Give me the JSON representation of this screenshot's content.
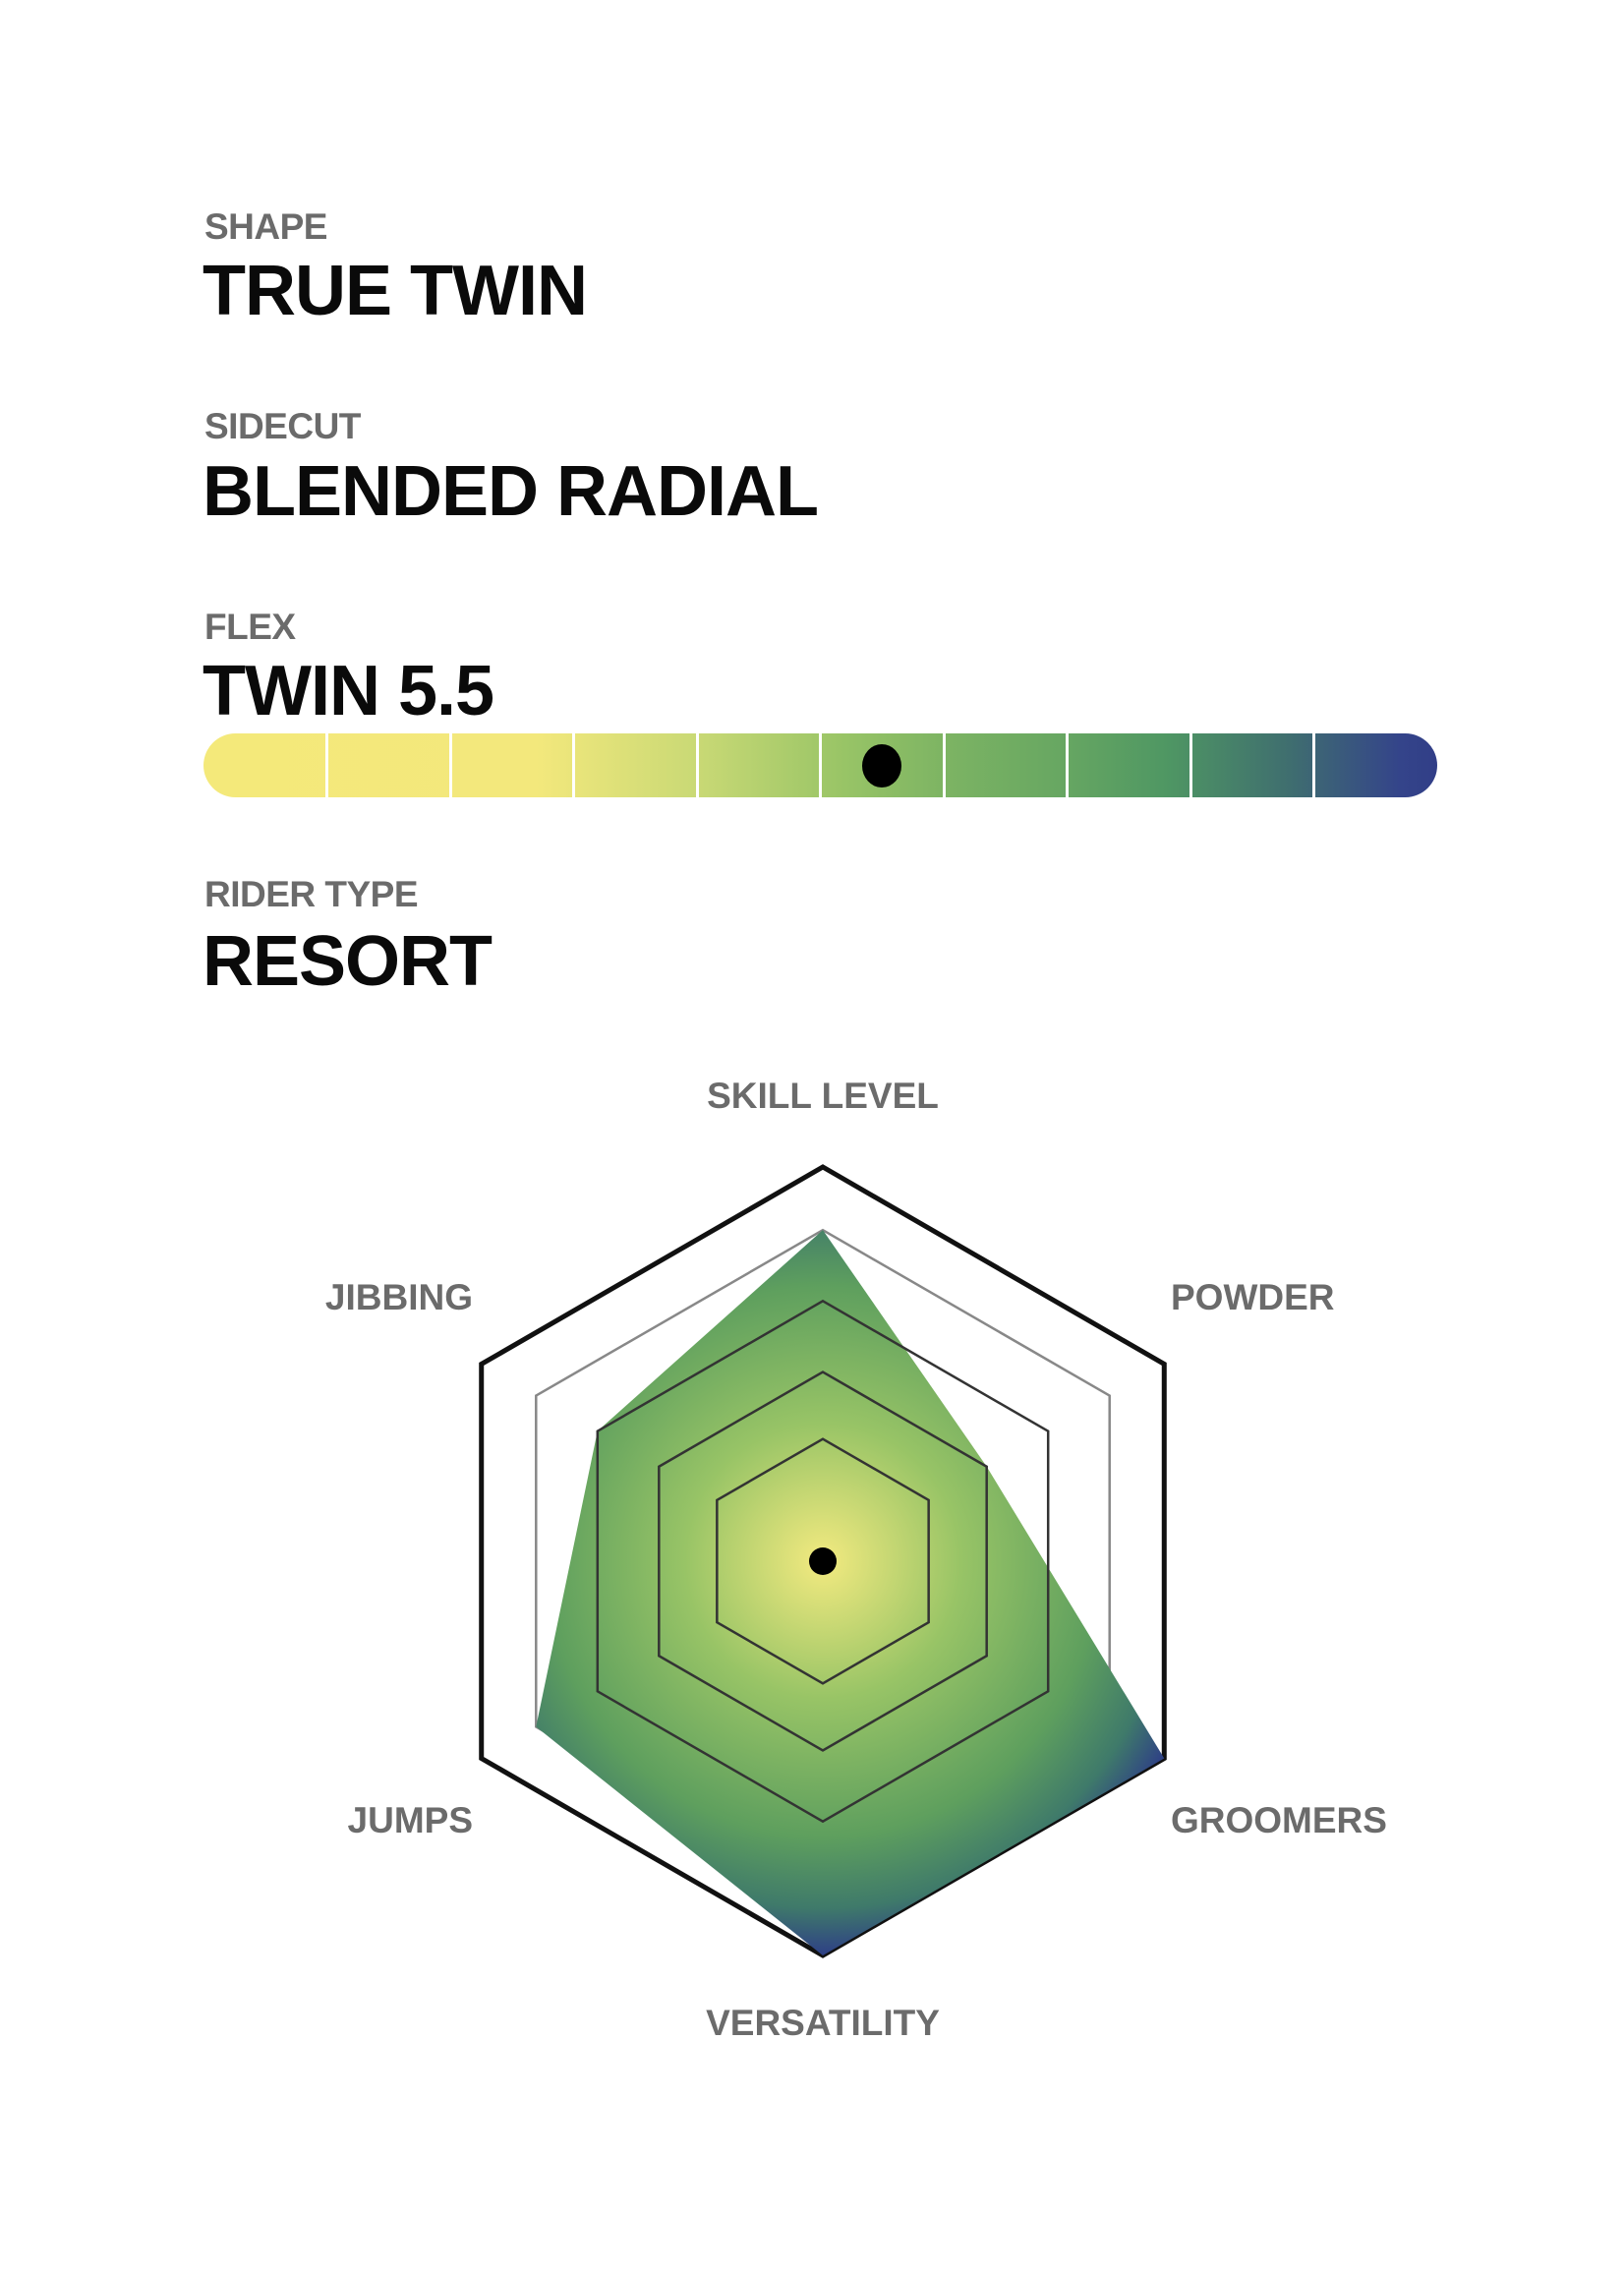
{
  "specs": [
    {
      "label": "SHAPE",
      "value": "TRUE TWIN"
    },
    {
      "label": "SIDECUT",
      "value": "BLENDED RADIAL"
    },
    {
      "label": "FLEX",
      "value": "TWIN 5.5"
    },
    {
      "label": "RIDER TYPE",
      "value": "RESORT"
    }
  ],
  "flex": {
    "value": 5.5,
    "scale_max": 10,
    "segments": 10,
    "colors": {
      "soft": "#f4e97a",
      "mid": "#7db463",
      "stiff": "#313e87"
    }
  },
  "chart_data": {
    "type": "radar",
    "axes": [
      "SKILL LEVEL",
      "POWDER",
      "GROOMERS",
      "VERSATILITY",
      "JUMPS",
      "JIBBING"
    ],
    "values": [
      4,
      2,
      5,
      5,
      4,
      3
    ],
    "levels": 5,
    "range": [
      0,
      5
    ],
    "grid": true,
    "fill_colors": {
      "center": "#f3ea80",
      "middle": "#5e9f5e",
      "edge": "#2e3f86"
    }
  }
}
